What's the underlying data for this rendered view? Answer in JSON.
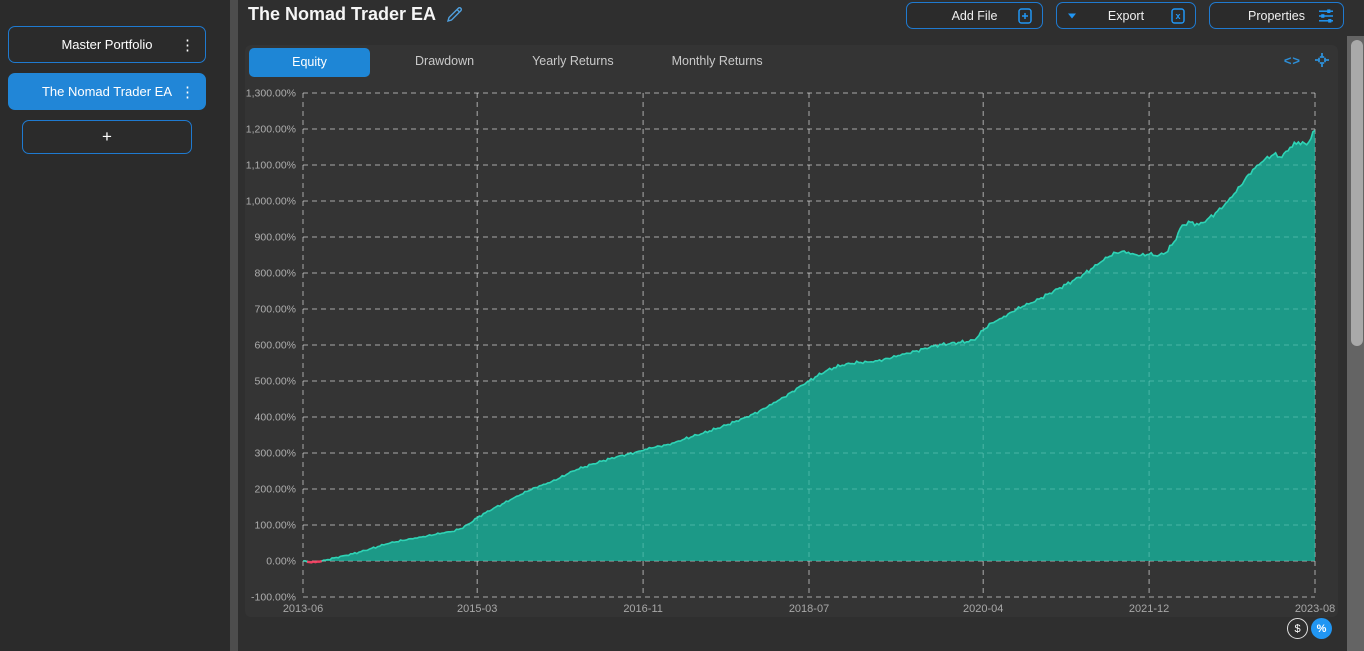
{
  "header": {
    "title": "The Nomad Trader EA",
    "buttons": {
      "add_file": "Add File",
      "export": "Export",
      "properties": "Properties"
    }
  },
  "sidebar": {
    "items": [
      {
        "label": "Master Portfolio",
        "active": false
      },
      {
        "label": "The Nomad Trader EA",
        "active": true
      }
    ],
    "add_button_label": "+"
  },
  "tabs": [
    {
      "label": "Equity",
      "active": true
    },
    {
      "label": "Drawdown",
      "active": false
    },
    {
      "label": "Yearly Returns",
      "active": false
    },
    {
      "label": "Monthly Returns",
      "active": false
    }
  ],
  "tab_icons": {
    "code_icon": "<>",
    "compress_icon": "compress-arrows"
  },
  "unit_toggle": {
    "dollar_label": "$",
    "percent_label": "%",
    "active": "percent"
  },
  "colors": {
    "accent_blue": "#2196f3",
    "tab_active_blue": "#1e86d6",
    "sidebar_active_blue": "#2186d7",
    "area_fill": "#19ab96",
    "line": "#2fd3b5",
    "negative_segment": "#ef4060"
  },
  "chart_data": {
    "type": "area",
    "title": "Equity",
    "x_start": "2013-06",
    "x_end": "2023-08",
    "frequency": "monthly",
    "values": [
      0,
      -4,
      -2,
      4,
      10,
      15,
      20,
      26,
      33,
      40,
      47,
      52,
      57,
      62,
      66,
      70,
      74,
      78,
      82,
      90,
      103,
      120,
      134,
      147,
      158,
      170,
      181,
      193,
      204,
      213,
      221,
      231,
      243,
      254,
      262,
      270,
      277,
      284,
      291,
      296,
      301,
      307,
      314,
      319,
      324,
      331,
      339,
      346,
      353,
      361,
      369,
      377,
      386,
      396,
      406,
      416,
      428,
      441,
      455,
      471,
      487,
      500,
      514,
      527,
      537,
      544,
      548,
      551,
      553,
      556,
      560,
      565,
      571,
      577,
      584,
      591,
      597,
      601,
      604,
      607,
      609,
      614,
      641,
      661,
      673,
      686,
      699,
      709,
      718,
      731,
      744,
      756,
      768,
      781,
      795,
      811,
      827,
      843,
      856,
      861,
      854,
      849,
      852,
      847,
      856,
      886,
      933,
      941,
      934,
      949,
      967,
      986,
      1011,
      1041,
      1074,
      1099,
      1117,
      1129,
      1121,
      1149,
      1164,
      1156,
      1196
    ],
    "ylim": [
      -100,
      1300
    ],
    "value_format": "percent",
    "y_ticks": [
      1300,
      1200,
      1100,
      1000,
      900,
      800,
      700,
      600,
      500,
      400,
      300,
      200,
      100,
      0,
      -100
    ],
    "y_tick_labels": [
      "1,300.00%",
      "1,200.00%",
      "1,100.00%",
      "1,000.00%",
      "900.00%",
      "800.00%",
      "700.00%",
      "600.00%",
      "500.00%",
      "400.00%",
      "300.00%",
      "200.00%",
      "100.00%",
      "0.00%",
      "-100.00%"
    ],
    "x_tick_indices": [
      0,
      21,
      41,
      61,
      82,
      102,
      122
    ],
    "x_tick_labels": [
      "2013-06",
      "2015-03",
      "2016-11",
      "2018-07",
      "2020-04",
      "2021-12",
      "2023-08"
    ],
    "grid": "dashed",
    "legend": "none"
  }
}
